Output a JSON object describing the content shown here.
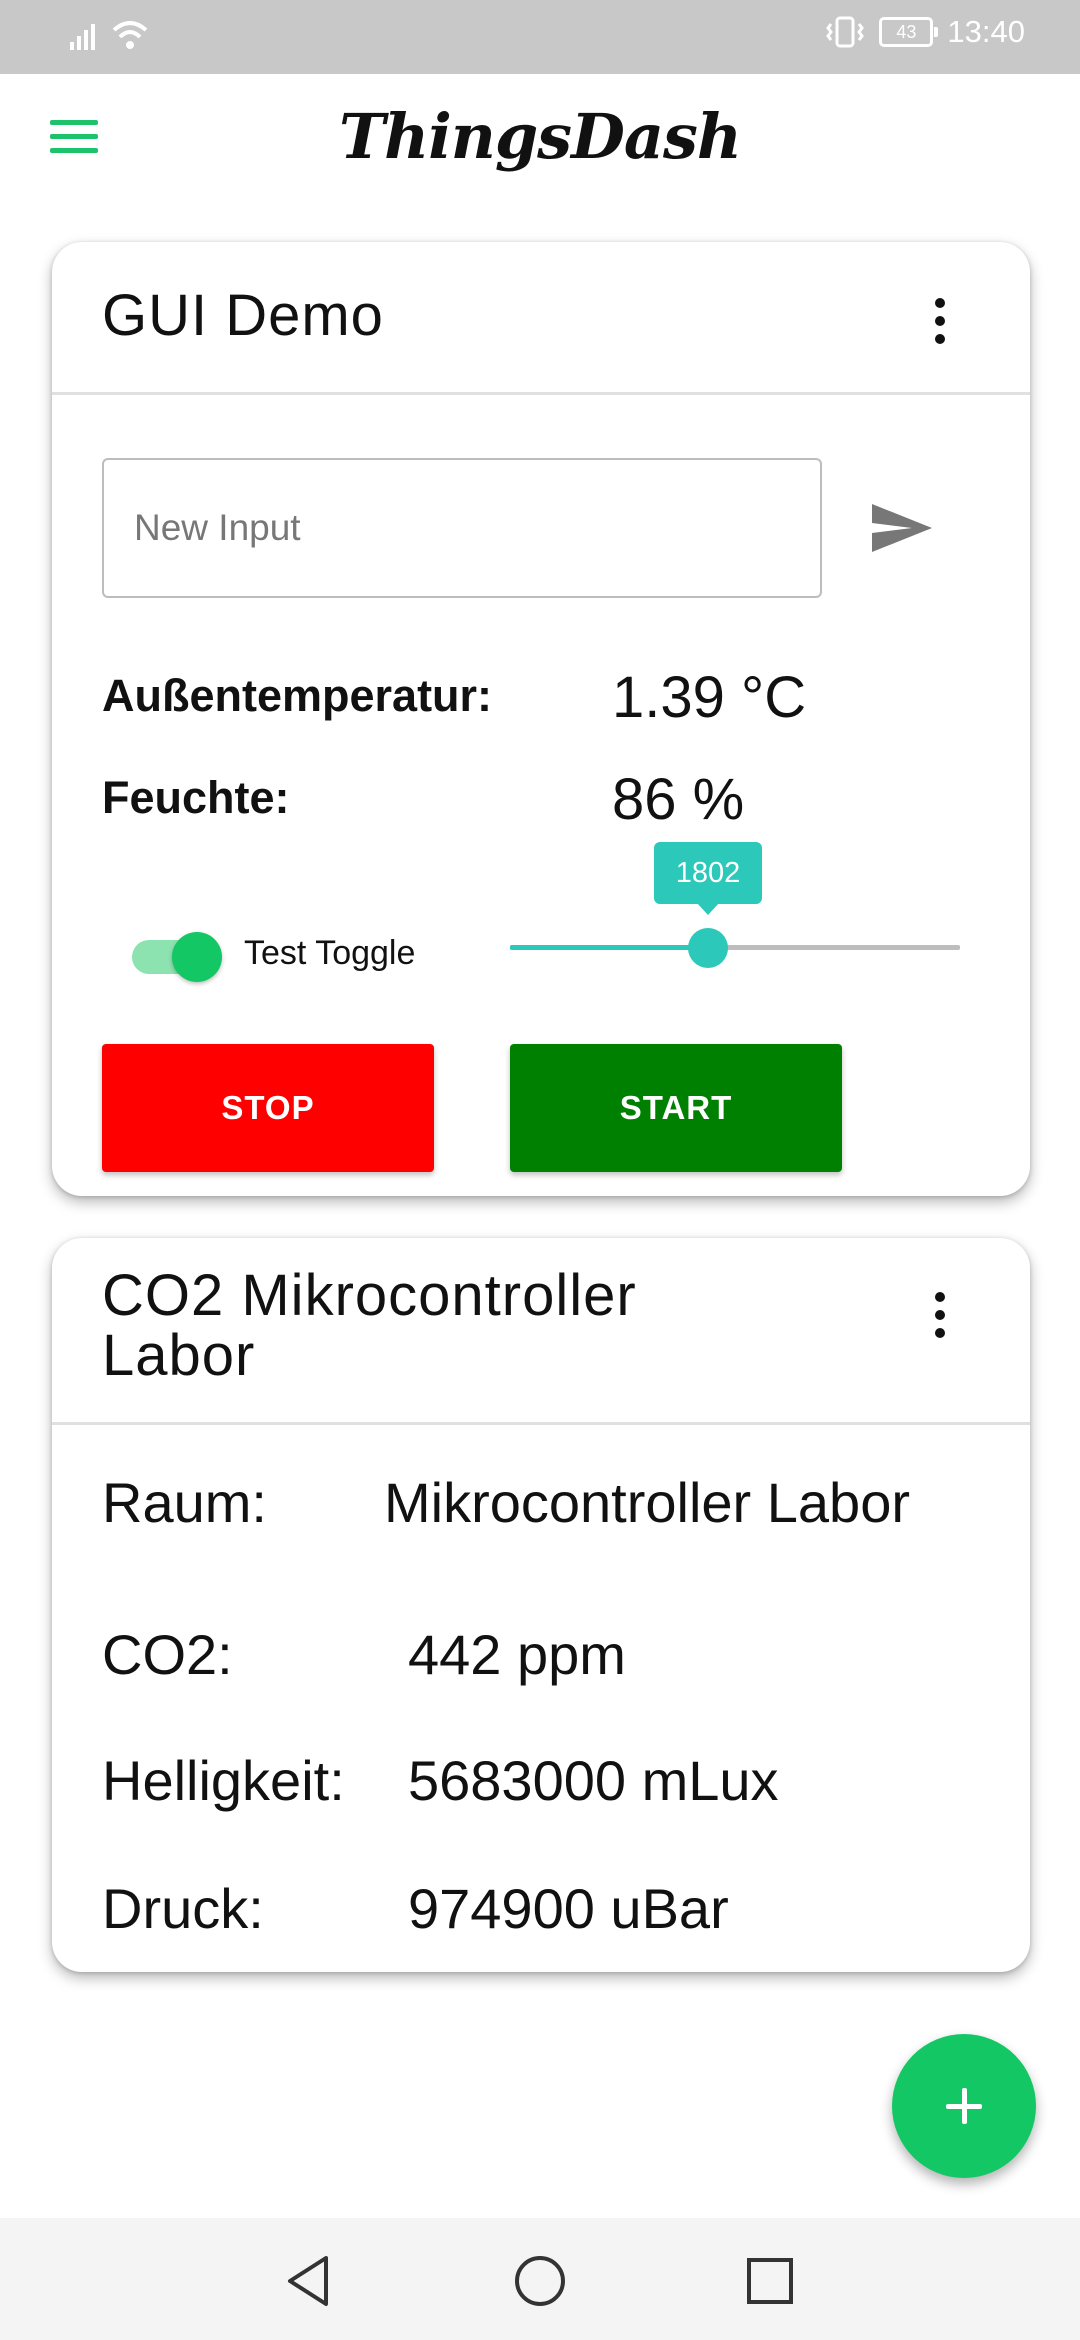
{
  "status_bar": {
    "battery": "43",
    "time": "13:40",
    "icons": [
      "signal-icon",
      "wifi-icon",
      "vibrate-icon",
      "battery-icon"
    ]
  },
  "app_bar": {
    "title": "ThingsDash",
    "menu_icon": "hamburger-menu-icon",
    "accent_color": "#1cc36b"
  },
  "card1": {
    "title": "GUI Demo",
    "input": {
      "placeholder": "New Input",
      "value": ""
    },
    "send_icon": "send-icon",
    "readings": [
      {
        "label": "Außentemperatur:",
        "value": "1.39 °C"
      },
      {
        "label": "Feuchte:",
        "value": "86 %"
      }
    ],
    "toggle": {
      "label": "Test Toggle",
      "on": true
    },
    "slider": {
      "value": "1802",
      "fraction": 0.44
    },
    "buttons": {
      "stop": {
        "label": "STOP",
        "color": "#ff0000"
      },
      "start": {
        "label": "START",
        "color": "#008000"
      }
    }
  },
  "card2": {
    "title_line1": "CO2 Mikrocontroller",
    "title_line2": "Labor",
    "rows": [
      {
        "label": "Raum:",
        "value": "Mikrocontroller Labor"
      },
      {
        "label": "CO2:",
        "value": "442 ppm"
      },
      {
        "label": "Helligkeit:",
        "value": "5683000 mLux"
      },
      {
        "label": "Druck:",
        "value": "974900 uBar"
      }
    ]
  },
  "fab": {
    "icon": "plus-icon",
    "color": "#12c764"
  },
  "nav_bar": {
    "icons": [
      "back-icon",
      "home-icon",
      "recents-icon"
    ]
  }
}
